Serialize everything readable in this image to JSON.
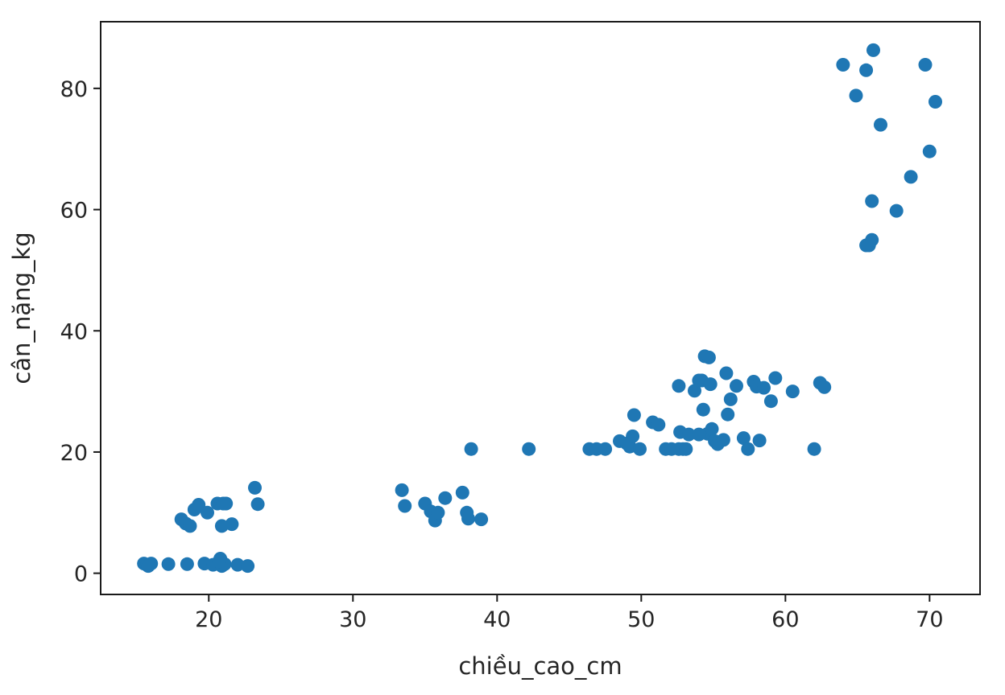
{
  "chart_data": {
    "type": "scatter",
    "title": "",
    "xlabel": "chiều_cao_cm",
    "ylabel": "cân_nặng_kg",
    "xlim": [
      12.5,
      73.5
    ],
    "ylim": [
      -3.5,
      91
    ],
    "xticks": [
      20,
      30,
      40,
      50,
      60,
      70
    ],
    "yticks": [
      0,
      20,
      40,
      60,
      80
    ],
    "grid": false,
    "legend": "none",
    "point_color": "#1f77b4",
    "series": [
      {
        "x": [
          15.5,
          15.7,
          16.0,
          15.8,
          17.2,
          18.5,
          19.7,
          20.3,
          20.8,
          20.9,
          21.1,
          20.7,
          22.0,
          22.7,
          18.1,
          18.4,
          18.7,
          19.0,
          19.3,
          19.9,
          20.6,
          21.2,
          20.9,
          21.6,
          23.2,
          23.4,
          21.0,
          33.4,
          33.6,
          35.0,
          35.4,
          35.7,
          35.9,
          36.4,
          37.6,
          37.9,
          38.0,
          38.9,
          38.2,
          42.2,
          46.4,
          46.9,
          47.5,
          48.5,
          49.0,
          49.2,
          49.4,
          49.9,
          49.5,
          50.8,
          51.2,
          51.7,
          52.1,
          52.6,
          52.9,
          53.1,
          52.6,
          52.7,
          53.3,
          53.7,
          54.0,
          54.6,
          54.3,
          54.9,
          55.1,
          55.3,
          55.7,
          55.9,
          56.0,
          56.2,
          56.6,
          57.1,
          57.4,
          57.8,
          58.0,
          58.2,
          58.5,
          59.0,
          59.3,
          60.5,
          62.0,
          62.4,
          62.7,
          54.4,
          54.7,
          54.0,
          54.2,
          54.8,
          64.0,
          64.9,
          65.6,
          65.8,
          66.1,
          66.6,
          65.6,
          66.0,
          66.0,
          67.7,
          68.7,
          69.7,
          70.0,
          70.4
        ],
        "y": [
          1.6,
          1.4,
          1.6,
          1.2,
          1.5,
          1.5,
          1.6,
          1.4,
          2.4,
          1.2,
          1.5,
          1.9,
          1.4,
          1.2,
          8.9,
          8.2,
          7.8,
          10.5,
          11.3,
          10.0,
          11.5,
          11.5,
          7.8,
          8.1,
          14.1,
          11.4,
          11.5,
          13.7,
          11.1,
          11.5,
          10.2,
          8.7,
          10.0,
          12.4,
          13.3,
          10.0,
          9.0,
          8.9,
          20.5,
          20.5,
          20.5,
          20.5,
          20.5,
          21.8,
          21.4,
          20.9,
          22.6,
          20.5,
          26.1,
          24.9,
          24.5,
          20.5,
          20.5,
          20.5,
          20.5,
          20.5,
          30.9,
          23.3,
          22.9,
          30.1,
          31.8,
          23.0,
          27.0,
          23.8,
          21.8,
          21.3,
          22.0,
          33.0,
          26.2,
          28.7,
          30.9,
          22.3,
          20.5,
          31.6,
          30.8,
          21.9,
          30.6,
          28.4,
          32.2,
          30.0,
          20.5,
          31.4,
          30.7,
          35.8,
          35.6,
          22.9,
          31.8,
          31.2,
          83.9,
          78.8,
          83.0,
          54.1,
          86.3,
          74.0,
          54.1,
          55.0,
          61.4,
          59.8,
          65.4,
          83.9,
          69.6,
          77.8
        ]
      }
    ]
  }
}
